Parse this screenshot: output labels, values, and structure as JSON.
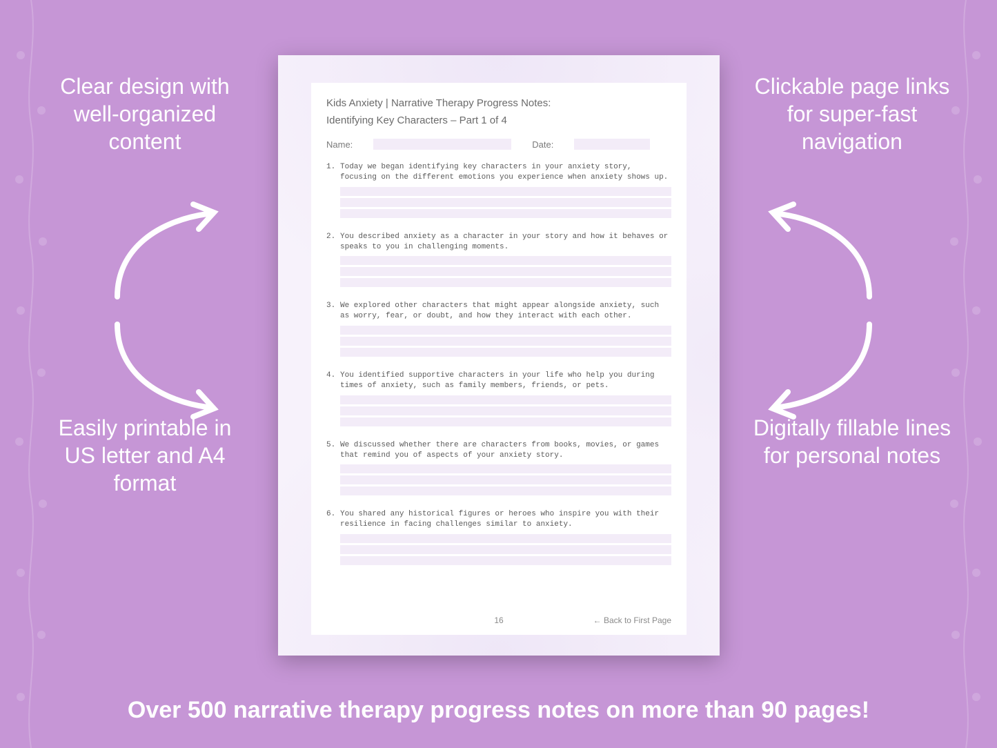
{
  "background_color": "#c696d6",
  "callouts": {
    "tl": "Clear design with well-organized content",
    "tr": "Clickable page links for super-fast navigation",
    "bl": "Easily printable in US letter and A4 format",
    "br": "Digitally fillable lines for personal notes"
  },
  "banner": "Over 500 narrative therapy progress notes on more than 90 pages!",
  "document": {
    "title_line1": "Kids Anxiety | Narrative Therapy Progress Notes:",
    "title_line2": "Identifying Key Characters – Part 1 of 4",
    "name_label": "Name:",
    "date_label": "Date:",
    "fill_color": "#f3ecf8",
    "text_color": "#6b6b6b",
    "mono_font": "Courier New",
    "prompts": [
      "Today we began identifying key characters in your anxiety story, focusing on the different emotions you experience when anxiety shows up.",
      "You described anxiety as a character in your story and how it behaves or speaks to you in challenging moments.",
      "We explored other characters that might appear alongside anxiety, such as worry, fear, or doubt, and how they interact with each other.",
      "You identified supportive characters in your life who help you during times of anxiety, such as family members, friends, or pets.",
      "We discussed whether there are characters from books, movies, or games that remind you of aspects of your anxiety story.",
      "You shared any historical figures or heroes who inspire you with their resilience in facing challenges similar to anxiety."
    ],
    "note_lines_per_prompt": 3,
    "page_number": "16",
    "back_link": "← Back to First Page"
  },
  "style": {
    "callout_color": "#ffffff",
    "callout_fontsize": 32,
    "banner_fontsize": 34,
    "arrow_color": "#ffffff",
    "arrow_stroke": 8,
    "page_shadow": "0 8px 30px rgba(0,0,0,0.25)",
    "page_bg": "#ffffff",
    "page_tint": "#f7f2fb"
  }
}
